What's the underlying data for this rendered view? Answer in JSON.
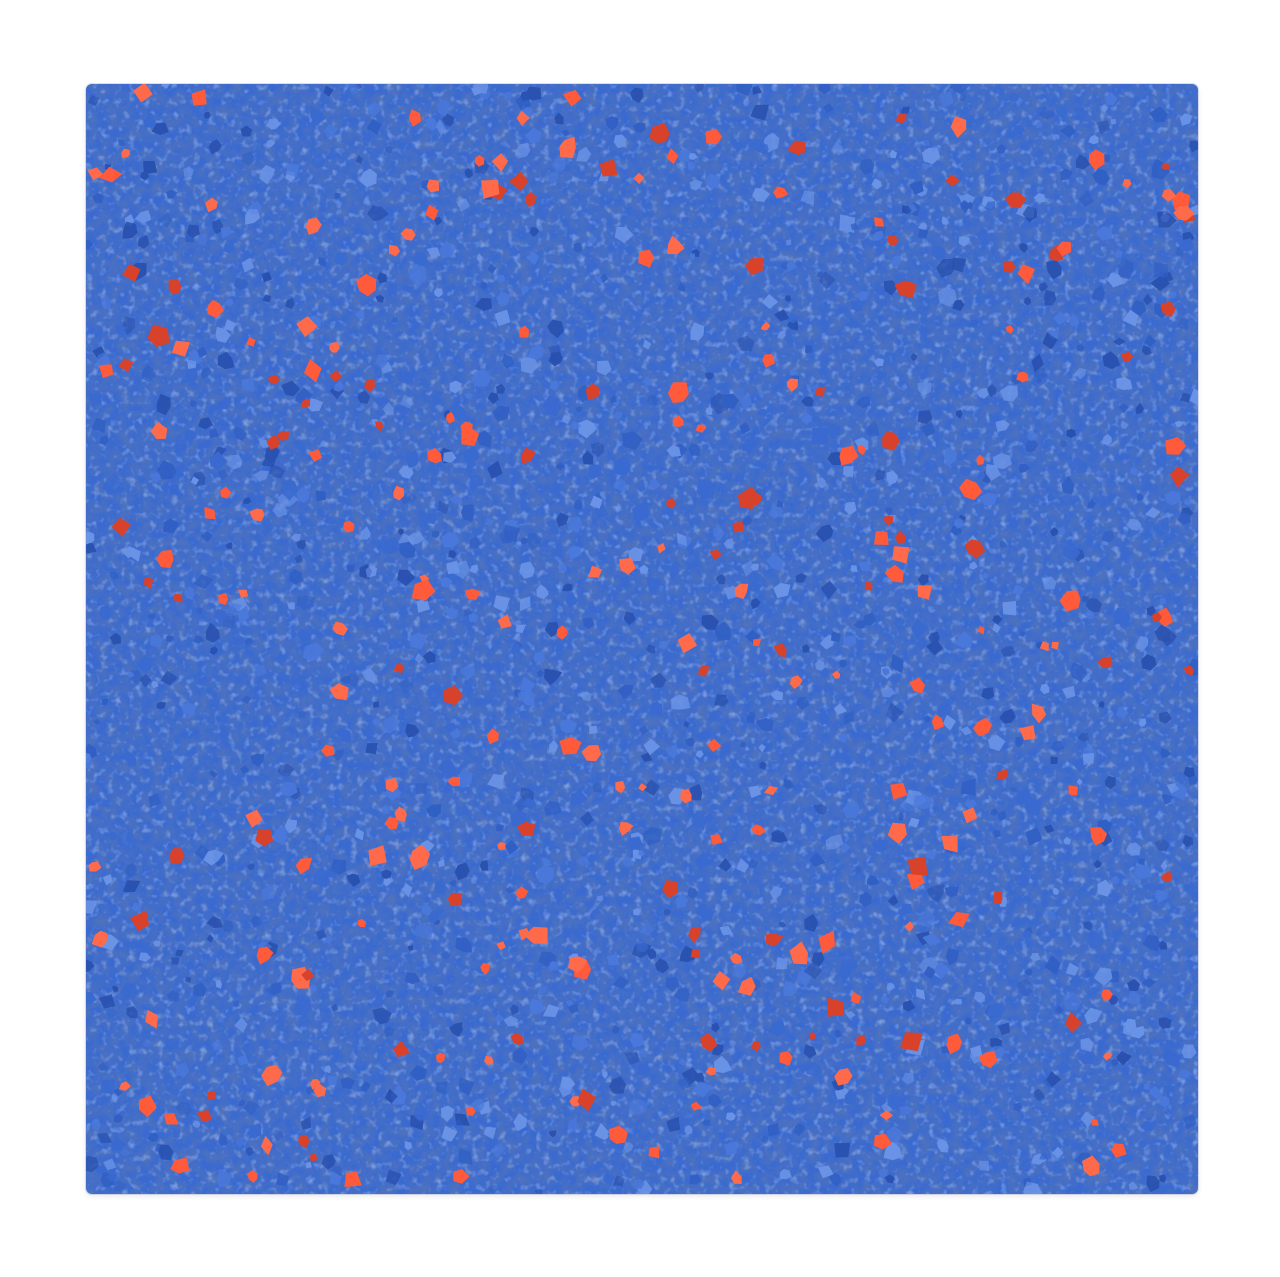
{
  "image": {
    "subject": "rubber-granule-tile",
    "background_color": "#ffffff",
    "colors": {
      "base_blue": "#3a6ad0",
      "base_blue_dark": "#2a52b0",
      "base_blue_light": "#6a93e6",
      "fleck_red": "#ff5a3a",
      "fleck_red_dark": "#d8412a"
    }
  }
}
